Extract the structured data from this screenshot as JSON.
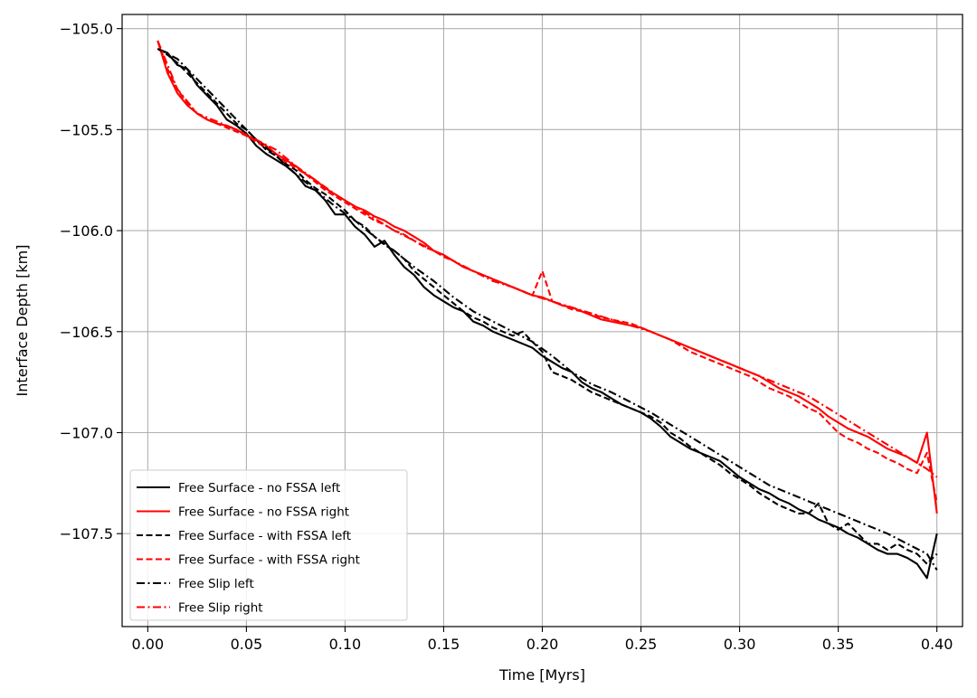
{
  "chart_data": {
    "type": "line",
    "title": "",
    "xlabel": "Time [Myrs]",
    "ylabel": "Interface Depth [km]",
    "xlim": [
      -0.013,
      0.413
    ],
    "ylim": [
      -107.96,
      -104.93
    ],
    "xticks": [
      0.0,
      0.05,
      0.1,
      0.15,
      0.2,
      0.25,
      0.3,
      0.35,
      0.4
    ],
    "xtick_labels": [
      "0.00",
      "0.05",
      "0.10",
      "0.15",
      "0.20",
      "0.25",
      "0.30",
      "0.35",
      "0.40"
    ],
    "yticks": [
      -105.0,
      -105.5,
      -106.0,
      -106.5,
      -107.0,
      -107.5
    ],
    "ytick_labels": [
      "−105.0",
      "−105.5",
      "−106.0",
      "−106.5",
      "−107.0",
      "−107.5"
    ],
    "grid": true,
    "legend_position": "lower-left",
    "series": [
      {
        "name": "Free Surface - no FSSA left",
        "color": "#000000",
        "style": "solid",
        "x": [
          0.005,
          0.01,
          0.015,
          0.02,
          0.025,
          0.03,
          0.035,
          0.04,
          0.045,
          0.05,
          0.055,
          0.06,
          0.065,
          0.07,
          0.075,
          0.08,
          0.085,
          0.09,
          0.095,
          0.1,
          0.105,
          0.11,
          0.115,
          0.12,
          0.125,
          0.13,
          0.135,
          0.14,
          0.145,
          0.15,
          0.155,
          0.16,
          0.165,
          0.17,
          0.175,
          0.18,
          0.185,
          0.19,
          0.195,
          0.2,
          0.205,
          0.21,
          0.215,
          0.22,
          0.225,
          0.23,
          0.235,
          0.24,
          0.245,
          0.25,
          0.255,
          0.26,
          0.265,
          0.27,
          0.275,
          0.28,
          0.285,
          0.29,
          0.295,
          0.3,
          0.305,
          0.31,
          0.315,
          0.32,
          0.325,
          0.33,
          0.335,
          0.34,
          0.345,
          0.35,
          0.355,
          0.36,
          0.365,
          0.37,
          0.375,
          0.38,
          0.385,
          0.39,
          0.395,
          0.4
        ],
        "y": [
          -105.1,
          -105.12,
          -105.18,
          -105.2,
          -105.28,
          -105.33,
          -105.38,
          -105.45,
          -105.48,
          -105.52,
          -105.58,
          -105.62,
          -105.65,
          -105.68,
          -105.72,
          -105.78,
          -105.8,
          -105.85,
          -105.92,
          -105.92,
          -105.98,
          -106.02,
          -106.08,
          -106.05,
          -106.12,
          -106.18,
          -106.22,
          -106.28,
          -106.32,
          -106.35,
          -106.38,
          -106.4,
          -106.45,
          -106.47,
          -106.5,
          -106.52,
          -106.54,
          -106.56,
          -106.58,
          -106.62,
          -106.65,
          -106.68,
          -106.7,
          -106.75,
          -106.78,
          -106.8,
          -106.83,
          -106.86,
          -106.88,
          -106.9,
          -106.93,
          -106.97,
          -107.02,
          -107.05,
          -107.08,
          -107.1,
          -107.12,
          -107.14,
          -107.18,
          -107.22,
          -107.25,
          -107.28,
          -107.3,
          -107.33,
          -107.35,
          -107.38,
          -107.4,
          -107.43,
          -107.45,
          -107.47,
          -107.5,
          -107.52,
          -107.55,
          -107.58,
          -107.6,
          -107.6,
          -107.62,
          -107.65,
          -107.72,
          -107.5
        ]
      },
      {
        "name": "Free Surface - no FSSA right",
        "color": "#ff0000",
        "style": "solid",
        "x": [
          0.005,
          0.01,
          0.015,
          0.02,
          0.025,
          0.03,
          0.035,
          0.04,
          0.045,
          0.05,
          0.055,
          0.06,
          0.065,
          0.07,
          0.075,
          0.08,
          0.085,
          0.09,
          0.095,
          0.1,
          0.105,
          0.11,
          0.115,
          0.12,
          0.125,
          0.13,
          0.135,
          0.14,
          0.145,
          0.15,
          0.155,
          0.16,
          0.165,
          0.17,
          0.175,
          0.18,
          0.185,
          0.19,
          0.195,
          0.2,
          0.205,
          0.21,
          0.215,
          0.22,
          0.225,
          0.23,
          0.235,
          0.24,
          0.245,
          0.25,
          0.255,
          0.26,
          0.265,
          0.27,
          0.275,
          0.28,
          0.285,
          0.29,
          0.295,
          0.3,
          0.305,
          0.31,
          0.315,
          0.32,
          0.325,
          0.33,
          0.335,
          0.34,
          0.345,
          0.35,
          0.355,
          0.36,
          0.365,
          0.37,
          0.375,
          0.38,
          0.385,
          0.39,
          0.395,
          0.4
        ],
        "y": [
          -105.06,
          -105.22,
          -105.32,
          -105.38,
          -105.42,
          -105.45,
          -105.47,
          -105.48,
          -105.5,
          -105.53,
          -105.55,
          -105.58,
          -105.62,
          -105.65,
          -105.68,
          -105.72,
          -105.75,
          -105.79,
          -105.82,
          -105.85,
          -105.88,
          -105.9,
          -105.93,
          -105.95,
          -105.98,
          -106.0,
          -106.03,
          -106.06,
          -106.1,
          -106.12,
          -106.15,
          -106.18,
          -106.2,
          -106.22,
          -106.24,
          -106.26,
          -106.28,
          -106.3,
          -106.32,
          -106.33,
          -106.35,
          -106.37,
          -106.38,
          -106.4,
          -106.42,
          -106.44,
          -106.45,
          -106.46,
          -106.47,
          -106.48,
          -106.5,
          -106.52,
          -106.54,
          -106.56,
          -106.58,
          -106.6,
          -106.62,
          -106.64,
          -106.66,
          -106.68,
          -106.7,
          -106.72,
          -106.75,
          -106.78,
          -106.8,
          -106.82,
          -106.85,
          -106.88,
          -106.92,
          -106.95,
          -106.98,
          -107.0,
          -107.02,
          -107.05,
          -107.08,
          -107.1,
          -107.12,
          -107.15,
          -107.0,
          -107.4
        ]
      },
      {
        "name": "Free Surface - with FSSA left",
        "color": "#000000",
        "style": "dashed",
        "x": [
          0.005,
          0.01,
          0.015,
          0.02,
          0.025,
          0.03,
          0.035,
          0.04,
          0.045,
          0.05,
          0.055,
          0.06,
          0.065,
          0.07,
          0.075,
          0.08,
          0.085,
          0.09,
          0.095,
          0.1,
          0.105,
          0.11,
          0.115,
          0.12,
          0.125,
          0.13,
          0.135,
          0.14,
          0.145,
          0.15,
          0.155,
          0.16,
          0.165,
          0.17,
          0.175,
          0.18,
          0.185,
          0.19,
          0.195,
          0.2,
          0.205,
          0.21,
          0.215,
          0.22,
          0.225,
          0.23,
          0.235,
          0.24,
          0.245,
          0.25,
          0.255,
          0.26,
          0.265,
          0.27,
          0.275,
          0.28,
          0.285,
          0.29,
          0.295,
          0.3,
          0.305,
          0.31,
          0.315,
          0.32,
          0.325,
          0.33,
          0.335,
          0.34,
          0.345,
          0.35,
          0.355,
          0.36,
          0.365,
          0.37,
          0.375,
          0.38,
          0.385,
          0.39,
          0.395,
          0.4
        ],
        "y": [
          -105.1,
          -105.13,
          -105.17,
          -105.22,
          -105.27,
          -105.32,
          -105.37,
          -105.42,
          -105.47,
          -105.5,
          -105.55,
          -105.6,
          -105.63,
          -105.67,
          -105.7,
          -105.75,
          -105.79,
          -105.82,
          -105.86,
          -105.9,
          -105.95,
          -105.98,
          -106.03,
          -106.07,
          -106.1,
          -106.14,
          -106.2,
          -106.24,
          -106.28,
          -106.32,
          -106.36,
          -106.4,
          -106.43,
          -106.45,
          -106.48,
          -106.5,
          -106.52,
          -106.5,
          -106.55,
          -106.6,
          -106.7,
          -106.72,
          -106.74,
          -106.77,
          -106.8,
          -106.82,
          -106.84,
          -106.86,
          -106.88,
          -106.9,
          -106.92,
          -106.95,
          -107.0,
          -107.03,
          -107.07,
          -107.1,
          -107.13,
          -107.16,
          -107.2,
          -107.23,
          -107.26,
          -107.3,
          -107.33,
          -107.36,
          -107.38,
          -107.4,
          -107.4,
          -107.35,
          -107.45,
          -107.48,
          -107.45,
          -107.5,
          -107.55,
          -107.55,
          -107.58,
          -107.55,
          -107.58,
          -107.6,
          -107.65,
          -107.6
        ]
      },
      {
        "name": "Free Surface - with FSSA right",
        "color": "#ff0000",
        "style": "dashed",
        "x": [
          0.005,
          0.01,
          0.015,
          0.02,
          0.025,
          0.03,
          0.035,
          0.04,
          0.045,
          0.05,
          0.055,
          0.06,
          0.065,
          0.07,
          0.075,
          0.08,
          0.085,
          0.09,
          0.095,
          0.1,
          0.105,
          0.11,
          0.115,
          0.12,
          0.125,
          0.13,
          0.135,
          0.14,
          0.145,
          0.15,
          0.155,
          0.16,
          0.165,
          0.17,
          0.175,
          0.18,
          0.185,
          0.19,
          0.195,
          0.2,
          0.205,
          0.21,
          0.215,
          0.22,
          0.225,
          0.23,
          0.235,
          0.24,
          0.245,
          0.25,
          0.255,
          0.26,
          0.265,
          0.27,
          0.275,
          0.28,
          0.285,
          0.29,
          0.295,
          0.3,
          0.305,
          0.31,
          0.315,
          0.32,
          0.325,
          0.33,
          0.335,
          0.34,
          0.345,
          0.35,
          0.355,
          0.36,
          0.365,
          0.37,
          0.375,
          0.38,
          0.385,
          0.39,
          0.395,
          0.4
        ],
        "y": [
          -105.06,
          -105.2,
          -105.3,
          -105.37,
          -105.42,
          -105.45,
          -105.47,
          -105.49,
          -105.51,
          -105.53,
          -105.56,
          -105.59,
          -105.62,
          -105.66,
          -105.69,
          -105.72,
          -105.76,
          -105.8,
          -105.83,
          -105.86,
          -105.89,
          -105.92,
          -105.95,
          -105.97,
          -106.0,
          -106.02,
          -106.05,
          -106.08,
          -106.1,
          -106.13,
          -106.15,
          -106.18,
          -106.2,
          -106.22,
          -106.24,
          -106.26,
          -106.28,
          -106.3,
          -106.32,
          -106.2,
          -106.35,
          -106.37,
          -106.39,
          -106.4,
          -106.41,
          -106.43,
          -106.44,
          -106.45,
          -106.46,
          -106.48,
          -106.5,
          -106.52,
          -106.54,
          -106.57,
          -106.6,
          -106.62,
          -106.64,
          -106.66,
          -106.68,
          -106.7,
          -106.72,
          -106.75,
          -106.78,
          -106.8,
          -106.82,
          -106.85,
          -106.88,
          -106.9,
          -106.95,
          -107.0,
          -107.03,
          -107.05,
          -107.08,
          -107.1,
          -107.13,
          -107.15,
          -107.18,
          -107.2,
          -107.1,
          -107.35
        ]
      },
      {
        "name": "Free Slip left",
        "color": "#000000",
        "style": "dashdot",
        "x": [
          0.005,
          0.015,
          0.025,
          0.035,
          0.045,
          0.055,
          0.065,
          0.075,
          0.085,
          0.095,
          0.105,
          0.115,
          0.125,
          0.135,
          0.145,
          0.155,
          0.165,
          0.175,
          0.185,
          0.195,
          0.205,
          0.215,
          0.225,
          0.235,
          0.245,
          0.255,
          0.265,
          0.275,
          0.285,
          0.295,
          0.305,
          0.315,
          0.325,
          0.335,
          0.345,
          0.355,
          0.365,
          0.375,
          0.385,
          0.395,
          0.4
        ],
        "y": [
          -105.1,
          -105.15,
          -105.25,
          -105.35,
          -105.45,
          -105.55,
          -105.63,
          -105.72,
          -105.8,
          -105.88,
          -105.95,
          -106.03,
          -106.1,
          -106.18,
          -106.25,
          -106.33,
          -106.4,
          -106.45,
          -106.5,
          -106.55,
          -106.62,
          -106.7,
          -106.76,
          -106.8,
          -106.85,
          -106.9,
          -106.96,
          -107.02,
          -107.08,
          -107.14,
          -107.2,
          -107.26,
          -107.3,
          -107.34,
          -107.38,
          -107.42,
          -107.46,
          -107.5,
          -107.55,
          -107.6,
          -107.68
        ]
      },
      {
        "name": "Free Slip right",
        "color": "#ff0000",
        "style": "dashdot",
        "x": [
          0.005,
          0.015,
          0.025,
          0.035,
          0.045,
          0.055,
          0.065,
          0.075,
          0.085,
          0.095,
          0.105,
          0.115,
          0.125,
          0.135,
          0.145,
          0.155,
          0.165,
          0.175,
          0.185,
          0.195,
          0.205,
          0.215,
          0.225,
          0.235,
          0.245,
          0.255,
          0.265,
          0.275,
          0.285,
          0.295,
          0.305,
          0.315,
          0.325,
          0.335,
          0.345,
          0.355,
          0.365,
          0.375,
          0.385,
          0.395,
          0.4
        ],
        "y": [
          -105.06,
          -105.3,
          -105.42,
          -105.46,
          -105.5,
          -105.55,
          -105.6,
          -105.68,
          -105.75,
          -105.82,
          -105.88,
          -105.94,
          -106.0,
          -106.05,
          -106.1,
          -106.15,
          -106.2,
          -106.25,
          -106.28,
          -106.32,
          -106.35,
          -106.38,
          -106.41,
          -106.44,
          -106.47,
          -106.5,
          -106.54,
          -106.58,
          -106.62,
          -106.66,
          -106.7,
          -106.74,
          -106.78,
          -106.82,
          -106.88,
          -106.94,
          -107.0,
          -107.06,
          -107.12,
          -107.18,
          -107.22
        ]
      }
    ]
  }
}
